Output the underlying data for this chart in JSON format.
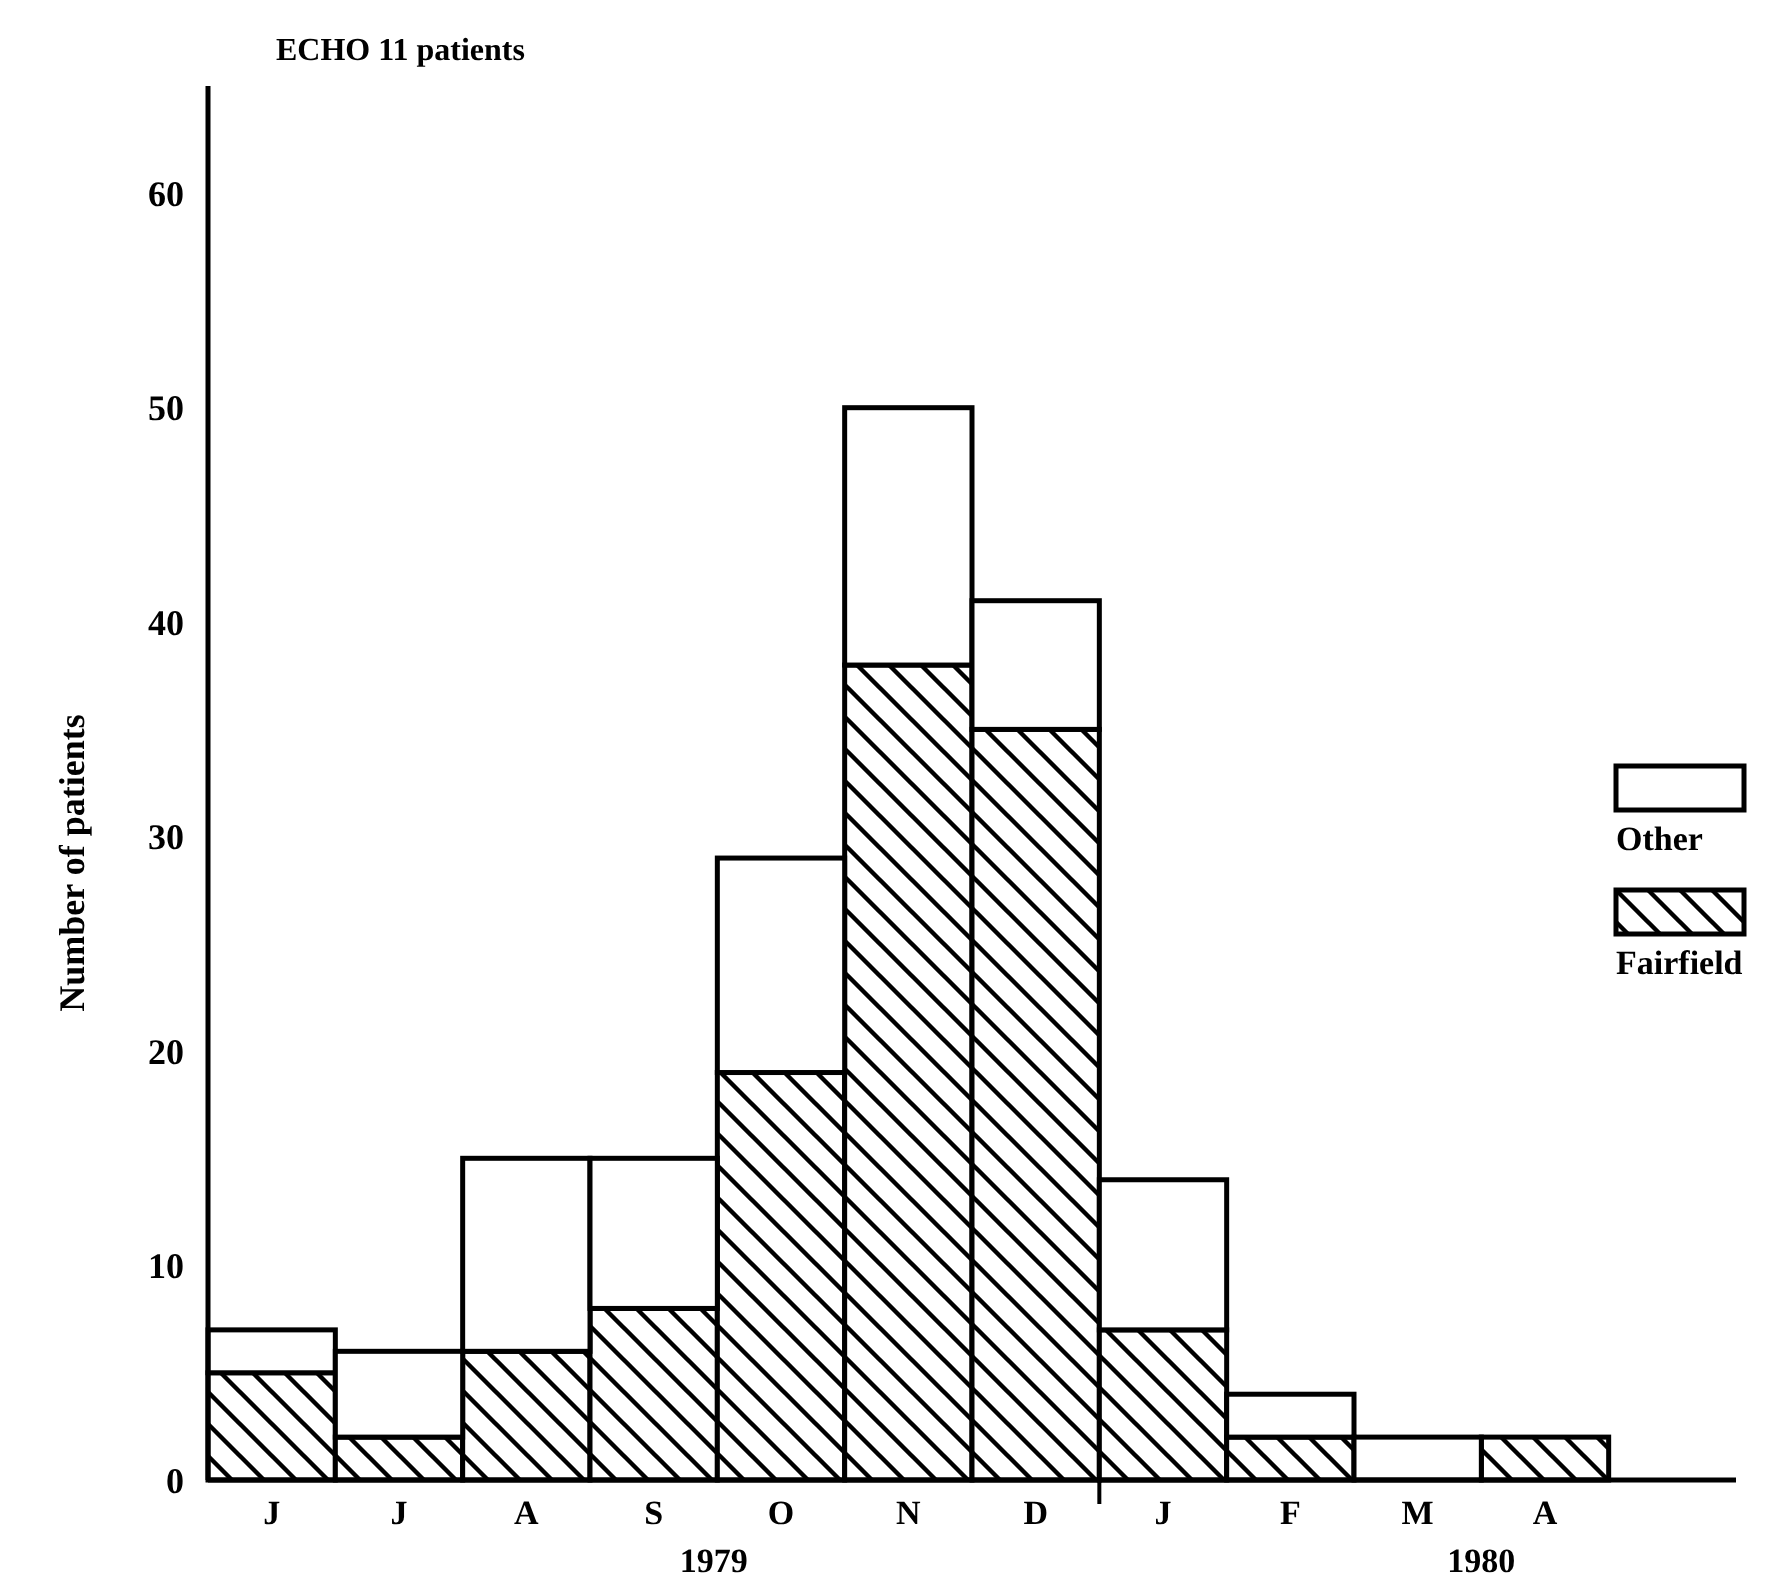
{
  "chart_data": {
    "type": "bar",
    "title": "ECHO 11 patients",
    "ylabel": "Number of patients",
    "categories": [
      "J",
      "J",
      "A",
      "S",
      "O",
      "N",
      "D",
      "J",
      "F",
      "M",
      "A",
      null
    ],
    "stacked": true,
    "series": [
      {
        "name": "Fairfield",
        "color": "#000000",
        "values": [
          5,
          2,
          6,
          8,
          19,
          38,
          35,
          7,
          2,
          0,
          2,
          null
        ]
      },
      {
        "name": "Other",
        "color": "#ffffff",
        "values": [
          2,
          4,
          9,
          7,
          10,
          12,
          6,
          7,
          2,
          2,
          0,
          null
        ]
      }
    ],
    "ylim": [
      0,
      65
    ],
    "yticks": [
      0,
      10,
      20,
      30,
      40,
      50,
      60
    ],
    "legend": "right",
    "annotations": [
      "1979",
      "1980"
    ]
  }
}
